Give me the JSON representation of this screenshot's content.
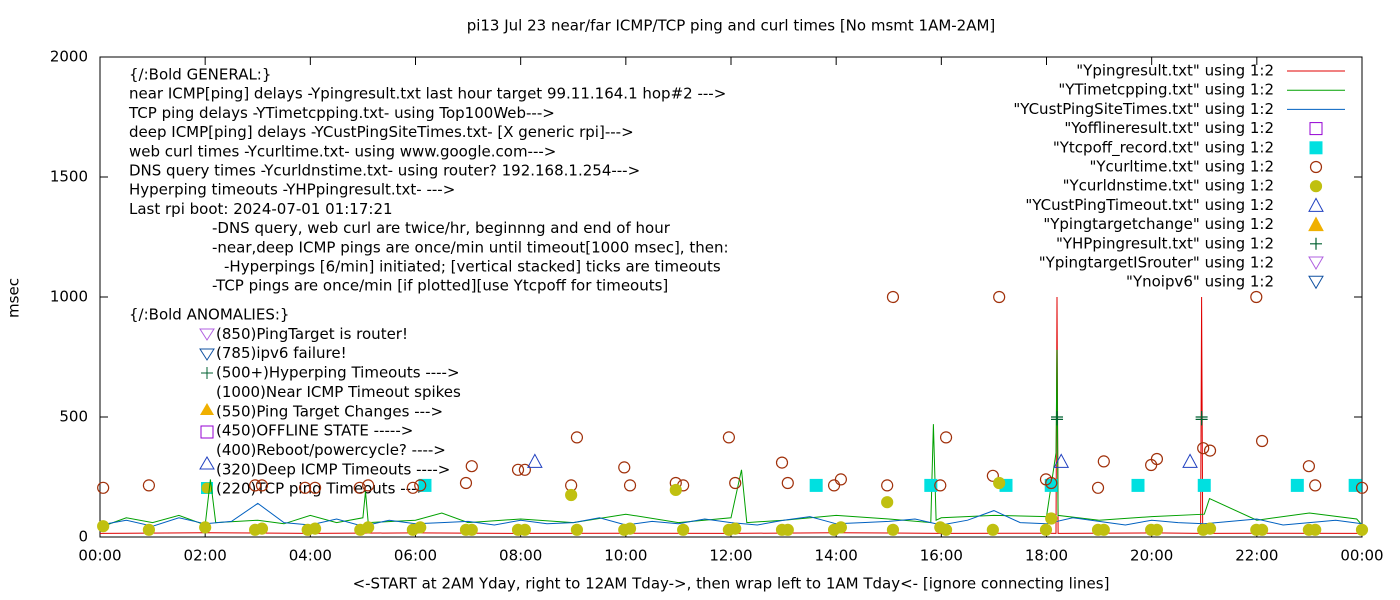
{
  "chart_data": {
    "type": "line",
    "title": "pi13 Jul 23  near/far ICMP/TCP ping and curl times [No msmt 1AM-2AM]",
    "x_label": "<-START at 2AM Yday, right to 12AM Tday->, then wrap left to 1AM Tday<- [ignore connecting lines]",
    "y_label": "msec",
    "xlim": [
      0,
      24
    ],
    "xticks": [
      {
        "value": 0,
        "label": "00:00"
      },
      {
        "value": 2,
        "label": "02:00"
      },
      {
        "value": 4,
        "label": "04:00"
      },
      {
        "value": 6,
        "label": "06:00"
      },
      {
        "value": 8,
        "label": "08:00"
      },
      {
        "value": 10,
        "label": "10:00"
      },
      {
        "value": 12,
        "label": "12:00"
      },
      {
        "value": 14,
        "label": "14:00"
      },
      {
        "value": 16,
        "label": "16:00"
      },
      {
        "value": 18,
        "label": "18:00"
      },
      {
        "value": 20,
        "label": "20:00"
      },
      {
        "value": 22,
        "label": "22:00"
      },
      {
        "value": 24,
        "label": "00:00"
      }
    ],
    "ylim": [
      0,
      2000
    ],
    "yticks": [
      0,
      500,
      1000,
      1500,
      2000
    ],
    "legend": "top-right",
    "annotations": [
      "{/:Bold GENERAL:}",
      "near ICMP[ping] delays -Ypingresult.txt last hour target 99.11.164.1 hop#2 --->",
      "TCP ping delays -YTimetcpping.txt- using Top100Web--->",
      "deep ICMP[ping] delays -YCustPingSiteTimes.txt- [X generic rpi]--->",
      "web curl times -Ycurltime.txt- using www.google.com--->",
      "DNS query times -Ycurldnstime.txt- using router? 192.168.1.254--->",
      "Hyperping timeouts -YHPpingresult.txt- --->",
      "Last rpi boot: 2024-07-01 01:17:21",
      "-DNS query, web curl are twice/hr, beginnng and end of hour",
      "-near,deep ICMP pings are once/min until timeout[1000 msec], then:",
      "-Hyperpings [6/min] initiated; [vertical stacked] ticks are timeouts",
      "-TCP pings are once/min [if plotted][use Ytcpoff for timeouts]",
      "{/:Bold ANOMALIES:}",
      "(850)PingTarget is router!",
      "(785)ipv6 failure!",
      "(500+)Hyperping Timeouts ---->",
      "(1000)Near ICMP Timeout spikes",
      "(550)Ping Target Changes --->",
      "(450)OFFLINE STATE ----->",
      "(400)Reboot/powercycle? ---->",
      "(320)Deep ICMP Timeouts ---->",
      "(220)TCP ping Timeouts --->"
    ],
    "series": [
      {
        "name": "\"Ypingresult.txt\" using 1:2",
        "color": "#e00000",
        "marker": "line",
        "x": [
          0,
          2,
          4,
          6,
          8,
          10,
          12,
          14,
          16,
          18,
          18.18,
          18.2,
          18.22,
          20,
          20.93,
          20.95,
          20.97,
          22,
          24
        ],
        "values": [
          15,
          18,
          15,
          17,
          15,
          16,
          15,
          18,
          15,
          16,
          15,
          1000,
          15,
          17,
          15,
          1000,
          15,
          16,
          15
        ]
      },
      {
        "name": "\"YTimetcpping.txt\" using 1:2",
        "color": "#00a000",
        "marker": "line",
        "x": [
          0,
          0.5,
          1,
          1.5,
          2,
          2.1,
          2.2,
          3,
          3.5,
          4,
          4.5,
          5,
          5.05,
          5.1,
          6,
          6.5,
          7,
          8,
          9,
          10,
          11,
          12,
          12.2,
          12.3,
          13,
          14,
          15,
          15.8,
          15.85,
          15.9,
          16,
          17,
          18,
          18.18,
          18.2,
          18.22,
          19,
          20,
          21,
          21.1,
          22,
          23,
          23.9,
          24
        ],
        "values": [
          40,
          80,
          60,
          90,
          50,
          240,
          60,
          70,
          55,
          90,
          60,
          80,
          190,
          60,
          70,
          100,
          60,
          75,
          60,
          95,
          60,
          80,
          280,
          60,
          70,
          90,
          75,
          60,
          470,
          70,
          80,
          90,
          85,
          350,
          780,
          90,
          70,
          85,
          95,
          160,
          70,
          100,
          75,
          50
        ]
      },
      {
        "name": "\"YCustPingSiteTimes.txt\" using 1:2",
        "color": "#0060c0",
        "marker": "line",
        "x": [
          0,
          0.5,
          1,
          1.5,
          2,
          2.5,
          3,
          3.5,
          4,
          4.5,
          5,
          5.5,
          6,
          6.5,
          7,
          7.5,
          8,
          8.5,
          9,
          9.5,
          10,
          10.5,
          11,
          11.5,
          12,
          12.5,
          13,
          13.5,
          14,
          14.5,
          15,
          15.5,
          16,
          16.5,
          17,
          17.5,
          18,
          18.5,
          19,
          19.5,
          20,
          20.5,
          21,
          21.5,
          22,
          22.5,
          23,
          23.5,
          24
        ],
        "values": [
          50,
          70,
          45,
          80,
          55,
          65,
          140,
          60,
          50,
          75,
          45,
          70,
          55,
          60,
          65,
          50,
          70,
          55,
          60,
          80,
          50,
          65,
          55,
          75,
          60,
          50,
          70,
          85,
          55,
          60,
          65,
          75,
          50,
          70,
          110,
          60,
          55,
          80,
          65,
          50,
          70,
          60,
          55,
          65,
          75,
          50,
          60,
          70,
          55
        ]
      },
      {
        "name": "\"Yofflineresult.txt\" using 1:2",
        "color": "#9400d3",
        "marker": "square-open",
        "x": [],
        "values": []
      },
      {
        "name": "\"Ytcpoff_record.txt\" using 1:2",
        "color": "#00e0e0",
        "marker": "square",
        "x": [
          6.18,
          13.62,
          15.8,
          17.23,
          18.09,
          19.74,
          21.0,
          22.77,
          23.87
        ],
        "values": [
          215,
          215,
          215,
          215,
          215,
          215,
          215,
          215,
          215
        ]
      },
      {
        "name": "\"Ycurltime.txt\" using 1:2",
        "color": "#a0300a",
        "marker": "circle-open",
        "x": [
          0.06,
          0.93,
          2.95,
          3.08,
          3.9,
          4.09,
          4.94,
          5.1,
          5.95,
          6.09,
          6.96,
          7.07,
          7.95,
          8.08,
          8.96,
          9.07,
          9.97,
          10.08,
          10.95,
          11.09,
          11.96,
          12.08,
          12.97,
          13.08,
          13.96,
          14.09,
          14.97,
          15.08,
          15.98,
          16.09,
          16.98,
          17.1,
          17.99,
          18.09,
          18.98,
          19.09,
          19.99,
          20.1,
          20.98,
          21.11,
          21.99,
          22.1,
          22.99,
          23.11,
          24.0
        ],
        "values": [
          205,
          215,
          215,
          215,
          205,
          205,
          205,
          215,
          205,
          215,
          225,
          295,
          280,
          280,
          215,
          415,
          290,
          215,
          225,
          215,
          415,
          225,
          310,
          225,
          215,
          240,
          215,
          1000,
          215,
          415,
          255,
          1000,
          240,
          225,
          205,
          315,
          300,
          325,
          370,
          360,
          1000,
          400,
          295,
          215,
          205
        ]
      },
      {
        "name": "\"Ycurldnstime.txt\" using 1:2",
        "color": "#c0c010",
        "marker": "circle",
        "x": [
          0.06,
          0.93,
          2.0,
          2.95,
          3.08,
          3.95,
          4.09,
          4.95,
          5.1,
          5.95,
          6.09,
          6.96,
          7.07,
          7.95,
          8.08,
          8.96,
          9.07,
          9.97,
          10.08,
          10.95,
          11.09,
          11.96,
          12.08,
          12.97,
          13.08,
          13.96,
          14.09,
          14.97,
          15.08,
          15.98,
          16.09,
          16.98,
          17.1,
          17.99,
          18.09,
          18.98,
          19.09,
          19.99,
          20.1,
          20.98,
          21.11,
          21.99,
          22.1,
          22.99,
          23.11,
          24.0
        ],
        "values": [
          45,
          30,
          40,
          30,
          35,
          30,
          35,
          30,
          40,
          30,
          40,
          30,
          30,
          30,
          30,
          175,
          30,
          30,
          35,
          196,
          30,
          30,
          35,
          30,
          30,
          30,
          40,
          145,
          30,
          40,
          30,
          30,
          225,
          30,
          77,
          30,
          30,
          30,
          30,
          30,
          35,
          30,
          30,
          30,
          30,
          30
        ]
      },
      {
        "name": "\"YCustPingTimeout.txt\" using 1:2",
        "color": "#2040c0",
        "marker": "triangle-open",
        "x": [
          8.27,
          18.28,
          20.73
        ],
        "values": [
          315,
          315,
          315
        ]
      },
      {
        "name": "\"Ypingtargetchange\" using 1:2",
        "color": "#f0b000",
        "marker": "triangle",
        "x": [],
        "values": []
      },
      {
        "name": "\"YHPpingresult.txt\" using 1:2",
        "color": "#006030",
        "marker": "plus",
        "x": [
          18.2,
          18.2,
          20.95,
          20.95
        ],
        "values": [
          500,
          490,
          500,
          490
        ]
      },
      {
        "name": "\"YpingtargetISrouter\" using 1:2",
        "color": "#b060e0",
        "marker": "triangle-down-open",
        "x": [],
        "values": []
      },
      {
        "name": "\"Ynoipv6\" using 1:2",
        "color": "#1050a0",
        "marker": "triangle-down-open",
        "x": [],
        "values": []
      }
    ]
  }
}
